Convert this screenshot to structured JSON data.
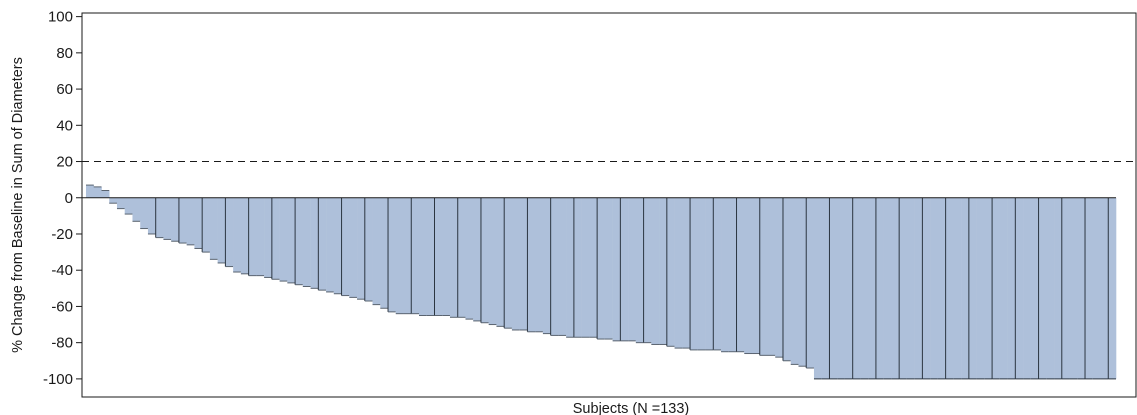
{
  "chart_data": {
    "type": "bar",
    "title": "",
    "xlabel": "Subjects (N =133)",
    "ylabel": "% Change from Baseline in Sum of Diameters",
    "ylim": [
      -110,
      102
    ],
    "yticks": [
      100,
      80,
      60,
      40,
      20,
      0,
      -20,
      -40,
      -60,
      -80,
      -100
    ],
    "reference_line": {
      "y": 20,
      "style": "dashed"
    },
    "bar_color": "#aec0da",
    "values": [
      7,
      6,
      4,
      -3,
      -6,
      -9,
      -13,
      -17,
      -20,
      -22,
      -23,
      -24,
      -25,
      -26,
      -28,
      -30,
      -34,
      -36,
      -38,
      -41,
      -42,
      -43,
      -43,
      -44,
      -45,
      -46,
      -47,
      -48,
      -49,
      -50,
      -51,
      -52,
      -53,
      -54,
      -55,
      -56,
      -57,
      -59,
      -61,
      -63,
      -64,
      -64,
      -64,
      -65,
      -65,
      -65,
      -65,
      -66,
      -66,
      -67,
      -68,
      -69,
      -70,
      -71,
      -72,
      -73,
      -73,
      -74,
      -74,
      -75,
      -76,
      -76,
      -77,
      -77,
      -77,
      -77,
      -78,
      -78,
      -79,
      -79,
      -79,
      -80,
      -80,
      -81,
      -81,
      -82,
      -83,
      -83,
      -84,
      -84,
      -84,
      -84,
      -85,
      -85,
      -85,
      -86,
      -86,
      -87,
      -87,
      -88,
      -90,
      -92,
      -93,
      -94,
      -100,
      -100,
      -100,
      -100,
      -100,
      -100,
      -100,
      -100,
      -100,
      -100,
      -100,
      -100,
      -100,
      -100,
      -100,
      -100,
      -100,
      -100,
      -100,
      -100,
      -100,
      -100,
      -100,
      -100,
      -100,
      -100,
      -100,
      -100,
      -100,
      -100,
      -100,
      -100,
      -100,
      -100,
      -100,
      -100,
      -100,
      -100,
      -100
    ]
  }
}
